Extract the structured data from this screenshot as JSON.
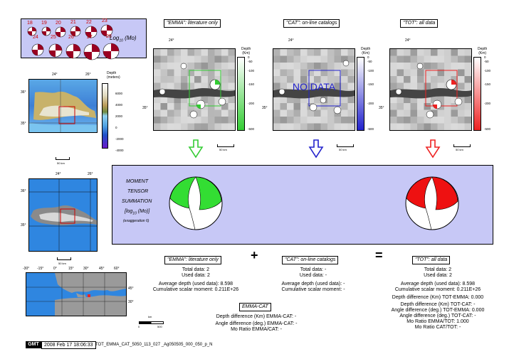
{
  "legend": {
    "mags": [
      "18",
      "19",
      "20",
      "21",
      "22",
      "23",
      "24",
      "25",
      "26",
      "27",
      "28"
    ],
    "scale_label": "Log",
    "scale_sub": "10",
    "scale_unit": "(Mo)"
  },
  "regional": {
    "lon_ticks": [
      "24°",
      "26°"
    ],
    "lat_ticks": [
      "36°",
      "35°"
    ],
    "depth_label": "Depth\n(meters)",
    "depth_ticks": [
      "6000",
      "4000",
      "2000",
      "0",
      "-2000",
      "-4000"
    ],
    "scale_bar": "50 km"
  },
  "panels": [
    {
      "title": "\"EMMA\": literature only",
      "lon": "24°",
      "lat": "35°",
      "depth_label": "Depth\n(Km)",
      "depth_ticks": [
        "0",
        "-50",
        "-100",
        "-150",
        "-200",
        "-500"
      ],
      "scale_bar": "50 km",
      "overlay": "",
      "color": "#33cc33"
    },
    {
      "title": "\"CAT\": on-line catalogs",
      "lon": "24°",
      "lat": "35°",
      "depth_label": "Depth\n(Km)",
      "depth_ticks": [
        "0",
        "-50",
        "-100",
        "-150",
        "-200",
        "-500"
      ],
      "scale_bar": "50 km",
      "overlay": "NO DATA",
      "color": "#2222cc"
    },
    {
      "title": "\"TOT\": all data",
      "lon": "24°",
      "lat": "35°",
      "depth_label": "Depth\n(Km)",
      "depth_ticks": [
        "0",
        "-50",
        "-100",
        "-150",
        "-200",
        "-500"
      ],
      "scale_bar": "50 km",
      "overlay": "",
      "color": "#ee2222"
    }
  ],
  "summation": {
    "line1": "MOMENT",
    "line2": "TENSOR",
    "line3": "SUMMATION",
    "line4": "[log",
    "line4_sub": "10",
    "line4_end": "(Mo)]",
    "line5": "(exaggeration 6)"
  },
  "lower_map": {
    "lon_ticks": [
      "24°",
      "26°"
    ],
    "lat_ticks": [
      "36°",
      "35°"
    ],
    "scale_bar": "50 km"
  },
  "world_map": {
    "lon_ticks": [
      "-30°",
      "-15°",
      "0°",
      "15°",
      "30°",
      "45°",
      "60°"
    ],
    "lat_ticks": [
      "45°",
      "30°"
    ],
    "scale_label": "km",
    "scale_ticks": [
      "0",
      "500"
    ]
  },
  "stats": {
    "emma": {
      "title": "\"EMMA\": literature only",
      "total": "Total data:    2",
      "used": "Used data:    2",
      "depth": "Average depth (used data):    8.598",
      "moment": "Cumulative scalar moment: 0.211E+26"
    },
    "cat": {
      "title": "\"CAT\": on-line catalogs",
      "total": "Total data: -",
      "used": "Used data: -",
      "depth": "Average depth (used data): -",
      "moment": "Cumulative scalar moment: -"
    },
    "tot": {
      "title": "\"TOT\": all data",
      "total": "Total data:    2",
      "used": "Used data:    2",
      "depth": "Average depth (used data):    8.598",
      "moment": "Cumulative scalar moment: 0.211E+26",
      "d1": "Depth difference (Km) TOT-EMMA:    0.000",
      "d2": "Depth difference (Km) TOT-CAT: -",
      "d3": "Angle difference (deg.) TOT-EMMA:    0.000",
      "d4": "Angle difference (deg.) TOT-CAT: -",
      "d5": "Mo Ratio EMMA/TOT:    1.000",
      "d6": "Mo Ratio CAT/TOT: -"
    },
    "emma_cat": {
      "title": "EMMA-CAT",
      "l1": "Depth difference (Km) EMMA-CAT: -",
      "l2": "Angle difference (deg.) EMMA-CAT: -",
      "l3": "Mo Ratio EMMA/CAT: -"
    },
    "plus": "+",
    "equals": "="
  },
  "footer": {
    "logo": "GMT",
    "timestamp": "2008 Feb 17 18:06:33",
    "file": "TOT_EMMA_CAT_5050_113_027 _Ag050505_000_050_p_N"
  },
  "colors": {
    "emma": "#33cc33",
    "cat": "#2222cc",
    "tot": "#ee2222",
    "legend_bg": "#c7c8f6"
  }
}
